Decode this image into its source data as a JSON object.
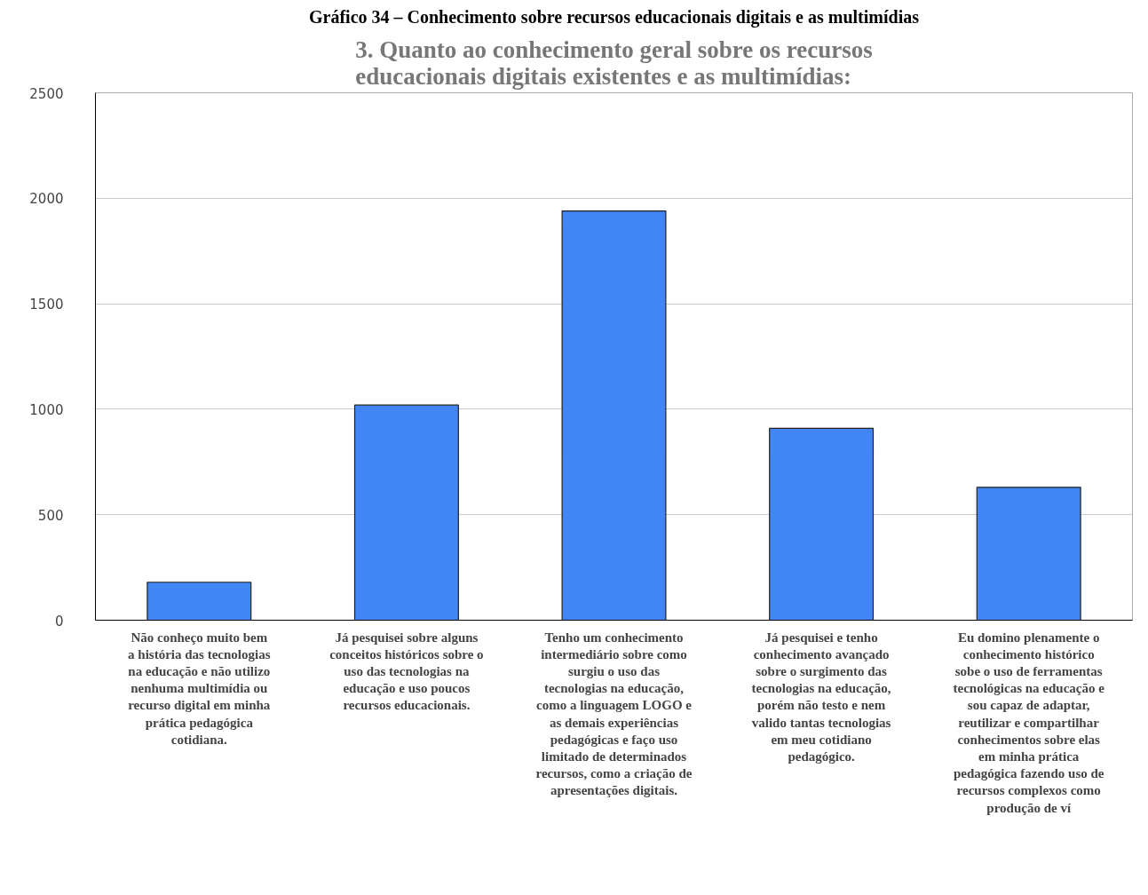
{
  "chart_data": {
    "type": "bar",
    "title": "3. Quanto ao conhecimento geral sobre os recursos\neducacionais digitais existentes e as multimídias:",
    "annotations": [
      "Gráfico 34 – Conhecimento sobre recursos educacionais digitais e as multimídias"
    ],
    "categories": [
      "Não conheço muito bem\na história das tecnologias\nna educação e não utilizo\nnenhuma multimídia ou\nrecurso digital em minha\nprática pedagógica\ncotidiana.",
      "Já pesquisei sobre alguns\nconceitos históricos sobre o\nuso das tecnologias na\neducação e uso poucos\nrecursos educacionais.",
      "Tenho um conhecimento\nintermediário sobre como\nsurgiu o uso das\ntecnologias na educação,\ncomo a linguagem LOGO e\nas demais experiências\npedagógicas e faço uso\nlimitado de determinados\nrecursos, como a criação de\napresentações digitais.",
      "Já pesquisei e tenho\nconhecimento avançado\nsobre o surgimento das\ntecnologias na educação,\nporém não testo e nem\nvalido tantas tecnologias\nem meu cotidiano\npedagógico.",
      "Eu domino plenamente o\nconhecimento histórico\nsobe o uso de ferramentas\ntecnológicas na educação e\nsou capaz de adaptar,\nreutilizar e compartilhar\nconhecimentos sobre elas\nem minha prática\npedagógica fazendo uso de\nrecursos complexos como\nprodução de ví"
    ],
    "values": [
      180,
      1020,
      1940,
      910,
      630
    ],
    "color": "#4285f4",
    "ylim": [
      0,
      2500
    ],
    "yticks": [
      0,
      500,
      1000,
      1500,
      2000,
      2500
    ],
    "grid": "y"
  }
}
